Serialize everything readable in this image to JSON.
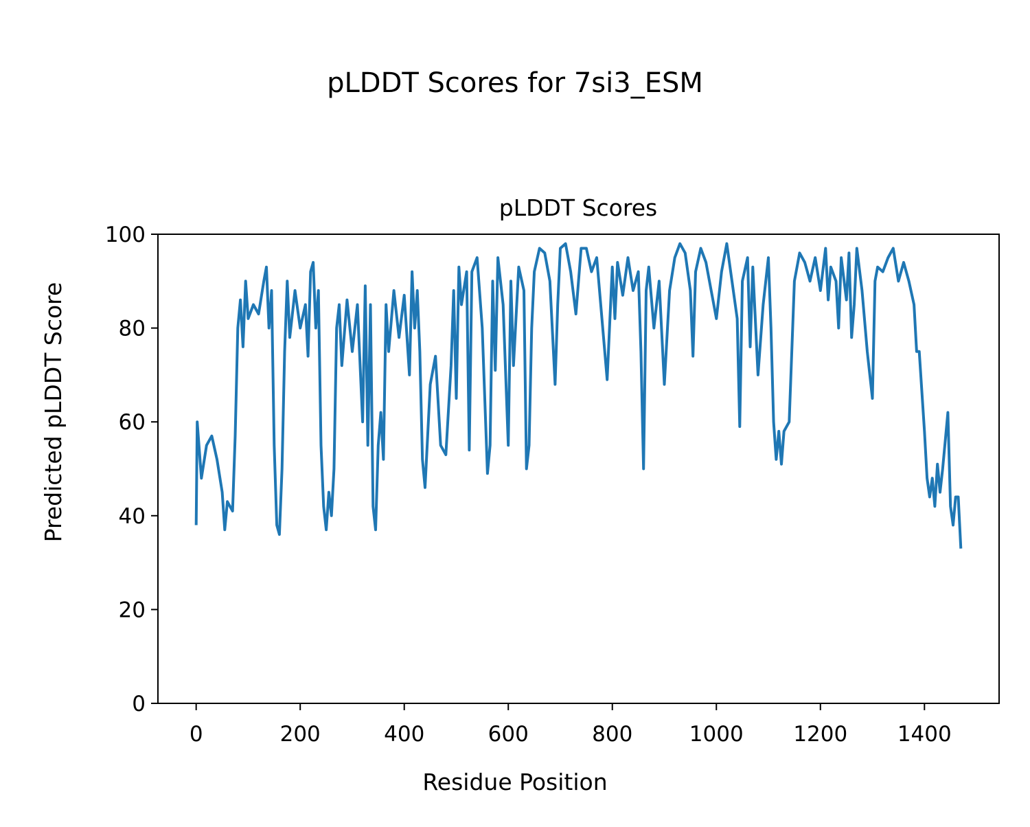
{
  "chart_data": {
    "type": "line",
    "suptitle": "pLDDT Scores for 7si3_ESM",
    "title": "pLDDT Scores",
    "xlabel": "Residue Position",
    "ylabel": "Predicted pLDDT Score",
    "xlim": [
      -73.5,
      1543.5
    ],
    "ylim": [
      0,
      100
    ],
    "xticks": [
      0,
      200,
      400,
      600,
      800,
      1000,
      1200,
      1400
    ],
    "yticks": [
      0,
      20,
      40,
      60,
      80,
      100
    ],
    "grid": false,
    "series": [
      {
        "name": "pLDDT",
        "color": "#1f77b4",
        "x": [
          0,
          2,
          10,
          20,
          30,
          40,
          50,
          55,
          60,
          70,
          75,
          80,
          85,
          90,
          95,
          100,
          110,
          120,
          130,
          135,
          140,
          145,
          150,
          155,
          160,
          165,
          170,
          175,
          180,
          190,
          200,
          210,
          215,
          220,
          225,
          230,
          235,
          240,
          245,
          250,
          255,
          260,
          265,
          270,
          275,
          280,
          290,
          300,
          310,
          320,
          325,
          330,
          335,
          340,
          345,
          350,
          355,
          360,
          365,
          370,
          380,
          390,
          400,
          410,
          415,
          420,
          425,
          430,
          435,
          440,
          450,
          460,
          470,
          480,
          490,
          495,
          500,
          505,
          510,
          520,
          525,
          530,
          540,
          550,
          560,
          565,
          570,
          575,
          580,
          590,
          600,
          605,
          610,
          620,
          630,
          635,
          640,
          645,
          650,
          660,
          670,
          680,
          690,
          695,
          700,
          710,
          720,
          730,
          740,
          750,
          760,
          770,
          780,
          790,
          800,
          805,
          810,
          820,
          830,
          840,
          850,
          855,
          860,
          865,
          870,
          880,
          890,
          900,
          910,
          920,
          930,
          940,
          950,
          955,
          960,
          970,
          980,
          990,
          1000,
          1010,
          1020,
          1030,
          1040,
          1045,
          1050,
          1060,
          1065,
          1070,
          1080,
          1090,
          1100,
          1105,
          1110,
          1115,
          1120,
          1125,
          1130,
          1140,
          1150,
          1160,
          1170,
          1180,
          1190,
          1200,
          1210,
          1215,
          1220,
          1230,
          1235,
          1240,
          1250,
          1255,
          1260,
          1265,
          1270,
          1280,
          1290,
          1300,
          1305,
          1310,
          1320,
          1330,
          1340,
          1350,
          1360,
          1370,
          1380,
          1385,
          1390,
          1400,
          1405,
          1410,
          1415,
          1420,
          1425,
          1430,
          1435,
          1440,
          1445,
          1450,
          1455,
          1460,
          1465,
          1470
        ],
        "y": [
          38,
          60,
          48,
          55,
          57,
          52,
          45,
          37,
          43,
          41,
          57,
          80,
          86,
          76,
          90,
          82,
          85,
          83,
          90,
          93,
          80,
          88,
          55,
          38,
          36,
          50,
          75,
          90,
          78,
          88,
          80,
          85,
          74,
          92,
          94,
          80,
          88,
          55,
          42,
          37,
          45,
          40,
          50,
          80,
          85,
          72,
          86,
          75,
          85,
          60,
          89,
          55,
          85,
          42,
          37,
          55,
          62,
          52,
          85,
          75,
          88,
          78,
          87,
          70,
          92,
          80,
          88,
          75,
          52,
          46,
          68,
          74,
          55,
          53,
          72,
          88,
          65,
          93,
          85,
          92,
          54,
          92,
          95,
          80,
          49,
          55,
          90,
          71,
          95,
          85,
          55,
          90,
          72,
          93,
          88,
          50,
          55,
          80,
          92,
          97,
          96,
          90,
          68,
          85,
          97,
          98,
          92,
          83,
          97,
          97,
          92,
          95,
          82,
          69,
          93,
          82,
          94,
          87,
          95,
          88,
          92,
          75,
          50,
          88,
          93,
          80,
          90,
          68,
          88,
          95,
          98,
          96,
          88,
          74,
          92,
          97,
          94,
          88,
          82,
          92,
          98,
          90,
          82,
          59,
          90,
          95,
          76,
          93,
          70,
          85,
          95,
          80,
          60,
          52,
          58,
          51,
          58,
          60,
          90,
          96,
          94,
          90,
          95,
          88,
          97,
          86,
          93,
          90,
          80,
          95,
          86,
          96,
          78,
          85,
          97,
          88,
          75,
          65,
          90,
          93,
          92,
          95,
          97,
          90,
          94,
          90,
          85,
          75,
          75,
          58,
          48,
          44,
          48,
          42,
          51,
          45,
          50,
          56,
          62,
          42,
          38,
          44,
          44,
          33
        ]
      }
    ]
  }
}
